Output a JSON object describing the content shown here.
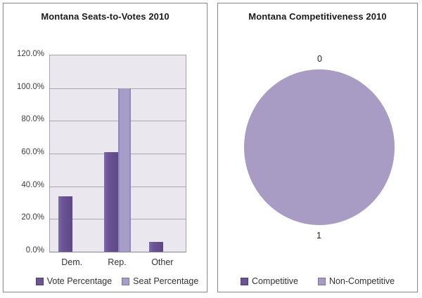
{
  "colors": {
    "vote_series": "#6a5494",
    "seat_series": "#a79dc9",
    "pie_fill": "#a89cc5",
    "plot_background": "#eae7ef",
    "gridline": "#aaa7b0",
    "panel_border": "#8d8d8d",
    "title_text": "#1b1b1b",
    "axis_text": "#3d3d3d"
  },
  "chart_data": [
    {
      "type": "bar",
      "title": "Montana Seats-to-Votes 2010",
      "categories": [
        "Dem.",
        "Rep.",
        "Other"
      ],
      "series": [
        {
          "name": "Vote Percentage",
          "color": "#6a5494",
          "values": [
            34,
            61,
            6
          ]
        },
        {
          "name": "Seat Percentage",
          "color": "#a79dc9",
          "values": [
            0,
            100,
            0
          ]
        }
      ],
      "ylabel": "",
      "xlabel": "",
      "ylim": [
        0,
        120
      ],
      "y_ticks": [
        "120.0%",
        "100.0%",
        "80.0%",
        "60.0%",
        "40.0%",
        "20.0%",
        "0.0%"
      ],
      "unit": "percent",
      "grid": true,
      "legend_position": "bottom"
    },
    {
      "type": "pie",
      "title": "Montana Competitiveness 2010",
      "slices": [
        {
          "label": "Competitive",
          "value": 0,
          "color": "#6a5494",
          "data_label": "0"
        },
        {
          "label": "Non-Competitive",
          "value": 1,
          "color": "#a89cc5",
          "data_label": "1"
        }
      ],
      "legend_position": "bottom"
    }
  ]
}
